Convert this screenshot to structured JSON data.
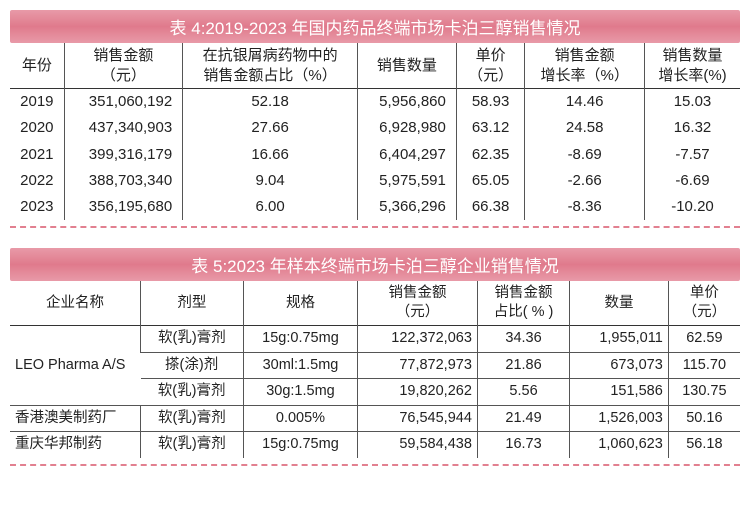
{
  "table4": {
    "title": "表 4:2019-2023 年国内药品终端市场卡泊三醇销售情况",
    "headers": {
      "year": "年份",
      "sales": "销售金额\n（元）",
      "share": "在抗银屑病药物中的\n销售金额占比（%）",
      "qty": "销售数量",
      "price": "单价\n（元）",
      "sgrowth": "销售金额\n增长率（%）",
      "qgrowth": "销售数量\n增长率(%)"
    },
    "rows": [
      {
        "year": "2019",
        "sales": "351,060,192",
        "share": "52.18",
        "qty": "5,956,860",
        "price": "58.93",
        "sgrowth": "14.46",
        "qgrowth": "15.03"
      },
      {
        "year": "2020",
        "sales": "437,340,903",
        "share": "27.66",
        "qty": "6,928,980",
        "price": "63.12",
        "sgrowth": "24.58",
        "qgrowth": "16.32"
      },
      {
        "year": "2021",
        "sales": "399,316,179",
        "share": "16.66",
        "qty": "6,404,297",
        "price": "62.35",
        "sgrowth": "-8.69",
        "qgrowth": "-7.57"
      },
      {
        "year": "2022",
        "sales": "388,703,340",
        "share": "9.04",
        "qty": "5,975,591",
        "price": "65.05",
        "sgrowth": "-2.66",
        "qgrowth": "-6.69"
      },
      {
        "year": "2023",
        "sales": "356,195,680",
        "share": "6.00",
        "qty": "5,366,296",
        "price": "66.38",
        "sgrowth": "-8.36",
        "qgrowth": "-10.20"
      }
    ]
  },
  "table5": {
    "title": "表 5:2023 年样本终端市场卡泊三醇企业销售情况",
    "headers": {
      "company": "企业名称",
      "form": "剂型",
      "spec": "规格",
      "sales": "销售金额\n（元）",
      "share": "销售金额\n占比( % )",
      "qty": "数量",
      "price": "单价\n（元）"
    },
    "rows": [
      {
        "company": "LEO Pharma A/S",
        "form": "软(乳)膏剂",
        "spec": "15g:0.75mg",
        "sales": "122,372,063",
        "share": "34.36",
        "qty": "1,955,011",
        "price": "62.59",
        "span": 3
      },
      {
        "company": "",
        "form": "搽(涂)剂",
        "spec": "30ml:1.5mg",
        "sales": "77,872,973",
        "share": "21.86",
        "qty": "673,073",
        "price": "115.70"
      },
      {
        "company": "",
        "form": "软(乳)膏剂",
        "spec": "30g:1.5mg",
        "sales": "19,820,262",
        "share": "5.56",
        "qty": "151,586",
        "price": "130.75"
      },
      {
        "company": "香港澳美制药厂",
        "form": "软(乳)膏剂",
        "spec": "0.005%",
        "sales": "76,545,944",
        "share": "21.49",
        "qty": "1,526,003",
        "price": "50.16",
        "span": 1
      },
      {
        "company": "重庆华邦制药",
        "form": "软(乳)膏剂",
        "spec": "15g:0.75mg",
        "sales": "59,584,438",
        "share": "16.73",
        "qty": "1,060,623",
        "price": "56.18",
        "span": 1
      }
    ]
  }
}
